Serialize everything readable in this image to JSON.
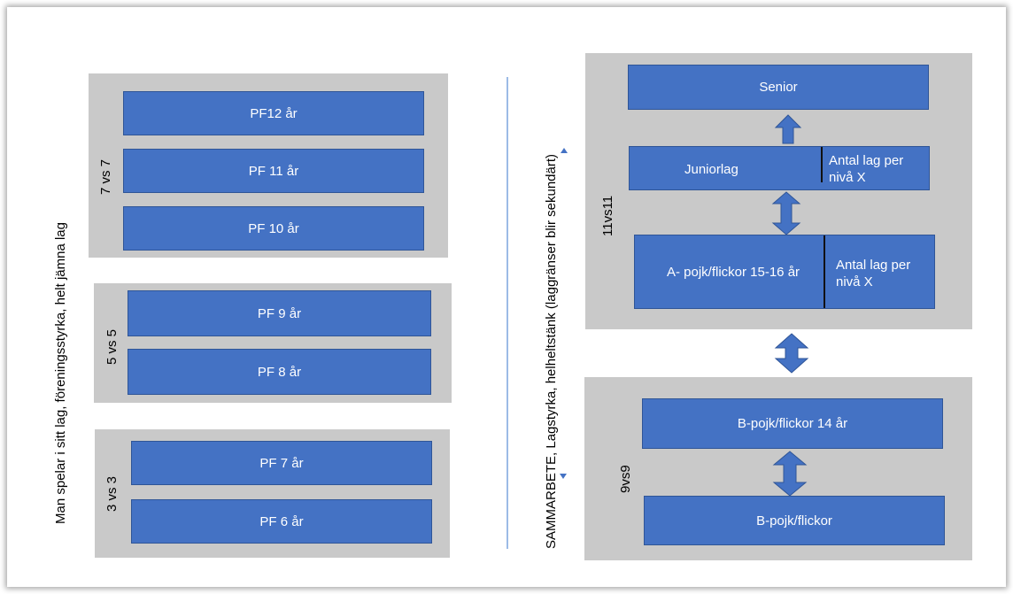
{
  "left_label": "Man spelar i sitt lag, föreningsstyrka, helt jämna lag",
  "center_label": "SAMMARBETE, Lagstyrka, helheltstänk (laggränser blir sekundärt)",
  "groups": [
    {
      "format": "7 vs 7",
      "teams": [
        "PF12 år",
        "PF 11 år",
        "PF 10 år"
      ]
    },
    {
      "format": "5 vs 5",
      "teams": [
        "PF 9 år",
        "PF 8 år"
      ]
    },
    {
      "format": "3 vs 3",
      "teams": [
        "PF 7 år",
        "PF 6 år"
      ]
    }
  ],
  "right_top": {
    "format": "11vs11",
    "senior": "Senior",
    "junior": "Juniorlag",
    "junior_note": "Antal lag per nivå X",
    "a_team": "A- pojk/flickor 15-16 år",
    "a_team_note": "Antal lag per nivå X"
  },
  "right_bottom": {
    "format": "9vs9",
    "b14": "B-pojk/flickor 14 år",
    "b": "B-pojk/flickor"
  },
  "colors": {
    "box": "#4472c4",
    "panel": "#c9c9c9"
  }
}
